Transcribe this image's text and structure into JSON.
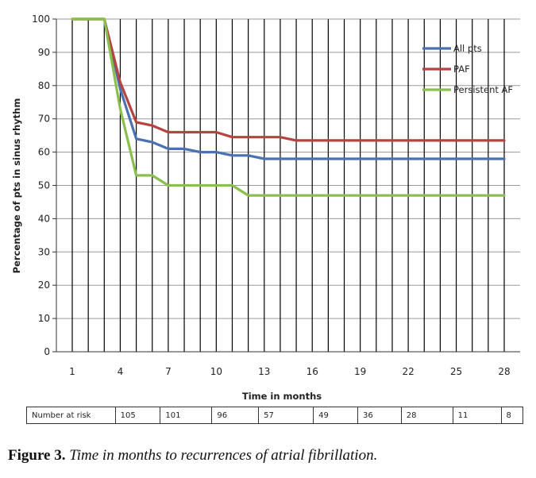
{
  "chart_data": {
    "type": "line",
    "title": "",
    "xlabel": "Time in months",
    "ylabel": "Percentage of pts in sinus rhythm",
    "xlim": [
      1,
      28
    ],
    "ylim": [
      0,
      100
    ],
    "x_ticks": [
      1,
      4,
      7,
      10,
      13,
      16,
      19,
      22,
      25,
      28
    ],
    "y_ticks": [
      0,
      10,
      20,
      30,
      40,
      50,
      60,
      70,
      80,
      90,
      100
    ],
    "vertical_gridlines_every_month": true,
    "horizontal_gridlines": true,
    "legend_position": "top-right",
    "x": [
      1,
      2,
      3,
      4,
      5,
      6,
      7,
      8,
      9,
      10,
      11,
      12,
      13,
      14,
      15,
      16,
      17,
      18,
      19,
      20,
      21,
      22,
      23,
      24,
      25,
      26,
      27,
      28
    ],
    "series": [
      {
        "name": "All pts",
        "color": "#4a72b0",
        "values": [
          100,
          100,
          100,
          79,
          64,
          63,
          61,
          61,
          60,
          60,
          59,
          59,
          58,
          58,
          58,
          58,
          58,
          58,
          58,
          58,
          58,
          58,
          58,
          58,
          58,
          58,
          58,
          58
        ]
      },
      {
        "name": "PAF",
        "color": "#b54441",
        "values": [
          100,
          100,
          100,
          81,
          69,
          68,
          66,
          66,
          66,
          66,
          64.5,
          64.5,
          64.5,
          64.5,
          63.5,
          63.5,
          63.5,
          63.5,
          63.5,
          63.5,
          63.5,
          63.5,
          63.5,
          63.5,
          63.5,
          63.5,
          63.5,
          63.5
        ]
      },
      {
        "name": "Persistent AF",
        "color": "#8bbf4d",
        "values": [
          100,
          100,
          100,
          73,
          53,
          53,
          50,
          50,
          50,
          50,
          50,
          47,
          47,
          47,
          47,
          47,
          47,
          47,
          47,
          47,
          47,
          47,
          47,
          47,
          47,
          47,
          47,
          47
        ]
      }
    ]
  },
  "risk_table": {
    "label": "Number at risk",
    "values": [
      "105",
      "101",
      "96",
      "57",
      "49",
      "36",
      "28",
      "11",
      "8"
    ]
  },
  "caption": {
    "label": "Figure 3.",
    "text": "Time in months to recurrences of atrial fibrillation."
  }
}
